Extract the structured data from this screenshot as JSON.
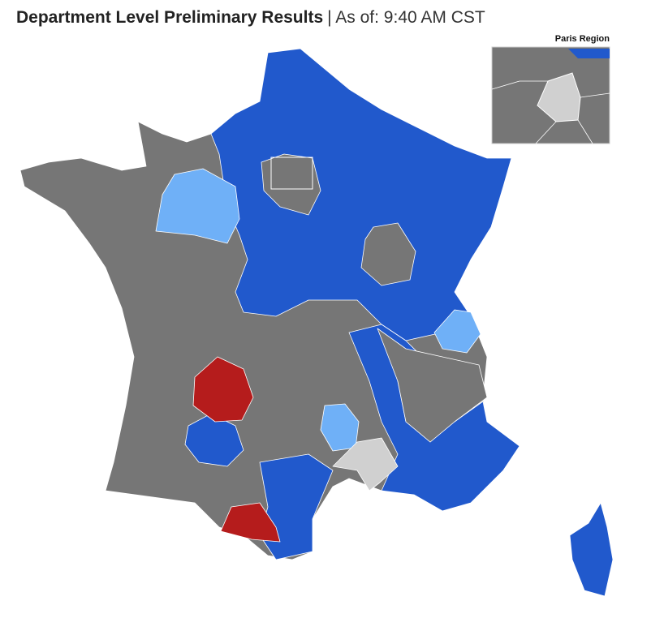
{
  "header": {
    "title": "Department Level Preliminary Results",
    "subtitle": "| As of: 9:40 AM CST"
  },
  "inset": {
    "label": "Paris Region"
  }
}
